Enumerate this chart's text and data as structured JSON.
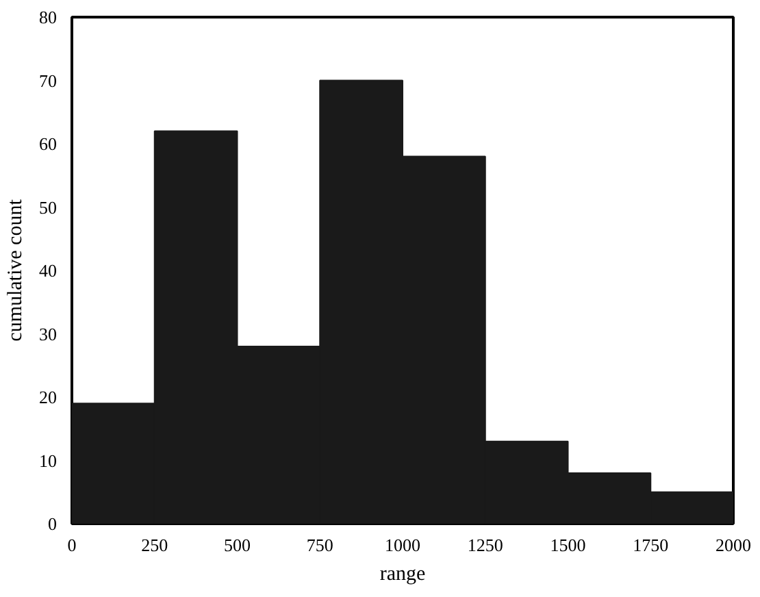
{
  "chart_data": {
    "type": "histogram",
    "xlabel": "range",
    "ylabel": "cumulative count",
    "bins": [
      0,
      250,
      500,
      750,
      1000,
      1250,
      1500,
      1750,
      2000
    ],
    "values": [
      19,
      62,
      28,
      70,
      58,
      13,
      8,
      5
    ],
    "color": "#1a1a1a",
    "xlim": [
      0,
      2000
    ],
    "ylim": [
      0,
      80
    ],
    "xticks": [
      0,
      250,
      500,
      750,
      1000,
      1250,
      1500,
      1750,
      2000
    ],
    "yticks": [
      0,
      10,
      20,
      30,
      40,
      50,
      60,
      70,
      80
    ]
  }
}
